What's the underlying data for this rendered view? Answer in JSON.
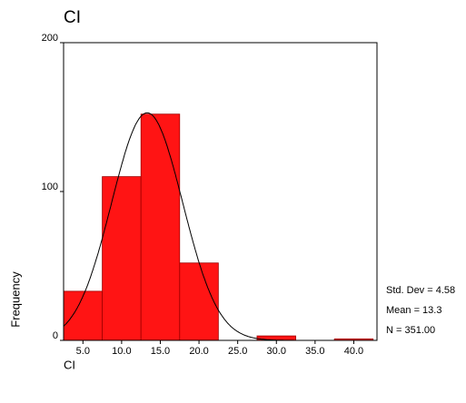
{
  "chart_data": {
    "type": "histogram",
    "title": "CI",
    "x_label": "CI",
    "y_label": "Frequency",
    "bins": [
      2.5,
      7.5,
      12.5,
      17.5,
      22.5,
      27.5,
      32.5,
      37.5,
      42.5
    ],
    "values": [
      33,
      110,
      152,
      52,
      0,
      3,
      0,
      1
    ],
    "color": "#ff0000",
    "xlim": [
      2.5,
      43
    ],
    "xticks": [
      {
        "value": 5,
        "label": "5.0"
      },
      {
        "value": 10,
        "label": "10.0"
      },
      {
        "value": 15,
        "label": "15.0"
      },
      {
        "value": 20,
        "label": "20.0"
      },
      {
        "value": 25,
        "label": "25.0"
      },
      {
        "value": 30,
        "label": "30.0"
      },
      {
        "value": 35,
        "label": "35.0"
      },
      {
        "value": 40,
        "label": "40.0"
      }
    ],
    "ylim": [
      0,
      200
    ],
    "yticks": [
      0,
      100,
      200
    ],
    "stats": [
      {
        "label": "Std. Dev = 4.58",
        "value": 4.58
      },
      {
        "label": "Mean = 13.3",
        "value": 13.3
      },
      {
        "label": "N = 351.00",
        "value": 351
      }
    ]
  }
}
